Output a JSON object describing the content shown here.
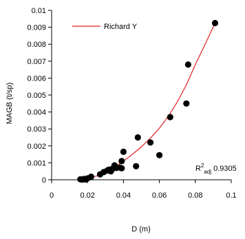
{
  "chart_data": {
    "type": "scatter",
    "title": "",
    "xlabel": "D (m)",
    "ylabel": "MAGB (t/sp)",
    "xlim": [
      0,
      0.1
    ],
    "ylim": [
      0,
      0.01
    ],
    "x_ticks": [
      0,
      0.02,
      0.04,
      0.06,
      0.08,
      0.1
    ],
    "x_tick_labels": [
      "0",
      "0.02",
      "0.04",
      "0.06",
      "0.08",
      "0.1"
    ],
    "y_ticks": [
      0,
      0.001,
      0.002,
      0.003,
      0.004,
      0.005,
      0.006,
      0.007,
      0.008,
      0.009,
      0.01
    ],
    "y_tick_labels": [
      "0",
      "0.001",
      "0.002",
      "0.003",
      "0.004",
      "0.005",
      "0.006",
      "0.007",
      "0.008",
      "0.009",
      "0.01"
    ],
    "grid": false,
    "legend_position": "top-left",
    "points": {
      "color": "#000000",
      "x": [
        0.016,
        0.017,
        0.018,
        0.019,
        0.02,
        0.022,
        0.027,
        0.029,
        0.031,
        0.032,
        0.033,
        0.034,
        0.035,
        0.036,
        0.038,
        0.039,
        0.039,
        0.04,
        0.047,
        0.048,
        0.055,
        0.06,
        0.066,
        0.075,
        0.076,
        0.091
      ],
      "y": [
        3e-05,
        1e-05,
        5e-05,
        2e-05,
        8e-05,
        0.00018,
        0.00032,
        0.00045,
        0.00055,
        0.0006,
        0.0005,
        0.00065,
        0.00085,
        0.0007,
        0.00072,
        0.0011,
        0.00068,
        0.00165,
        0.0008,
        0.0025,
        0.0022,
        0.00145,
        0.0037,
        0.0045,
        0.0068,
        0.00925
      ]
    },
    "fit": {
      "name": "Richard Y",
      "color": "#e02020",
      "x": [
        0.016,
        0.02,
        0.025,
        0.03,
        0.035,
        0.04,
        0.045,
        0.05,
        0.055,
        0.06,
        0.065,
        0.07,
        0.075,
        0.08,
        0.085,
        0.091
      ],
      "y": [
        2e-05,
        8e-05,
        0.00022,
        0.00045,
        0.00075,
        0.0011,
        0.0015,
        0.00195,
        0.00245,
        0.00305,
        0.00375,
        0.0046,
        0.0056,
        0.0068,
        0.0079,
        0.00925
      ]
    },
    "annotation": {
      "prefix": "R",
      "sup": "2",
      "sub": "adj",
      "value": "0.9305"
    }
  }
}
